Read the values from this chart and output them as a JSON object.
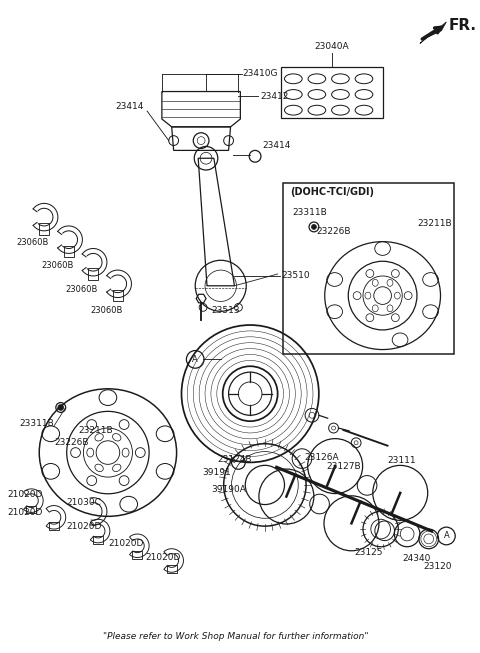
{
  "bg_color": "#ffffff",
  "fr_label": "FR.",
  "dohc_label": "(DOHC-TCI/GDI)",
  "footer": "\"Please refer to Work Shop Manual for further information\""
}
